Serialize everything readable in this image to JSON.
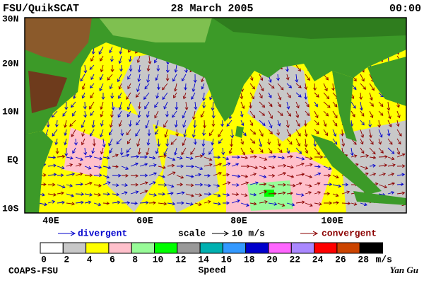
{
  "header": {
    "left": "FSU/QuikSCAT",
    "center": "28 March 2005",
    "right": "00:00"
  },
  "map": {
    "lat_labels": [
      "30N",
      "20N",
      "10N",
      "EQ",
      "10S"
    ],
    "lon_labels": [
      "40E",
      "60E",
      "80E",
      "100E"
    ]
  },
  "legend": {
    "divergent": "divergent",
    "scale": "scale",
    "scale_value": "10 m/s",
    "convergent": "convergent"
  },
  "colorbar": {
    "colors": [
      "#ffffff",
      "#c8c8c8",
      "#ffff00",
      "#ffc0cb",
      "#98fb98",
      "#00ff00",
      "#999999",
      "#00b0b0",
      "#3399ff",
      "#0000cc",
      "#ff66ff",
      "#aa88ff",
      "#ff0000",
      "#cc4400",
      "#000000"
    ],
    "ticks": [
      0,
      2,
      4,
      6,
      8,
      10,
      12,
      14,
      16,
      18,
      20,
      22,
      24,
      26,
      28
    ],
    "unit": "m/s",
    "label": "Speed"
  },
  "footer": {
    "left": "COAPS-FSU",
    "right": "Yan Gu"
  }
}
